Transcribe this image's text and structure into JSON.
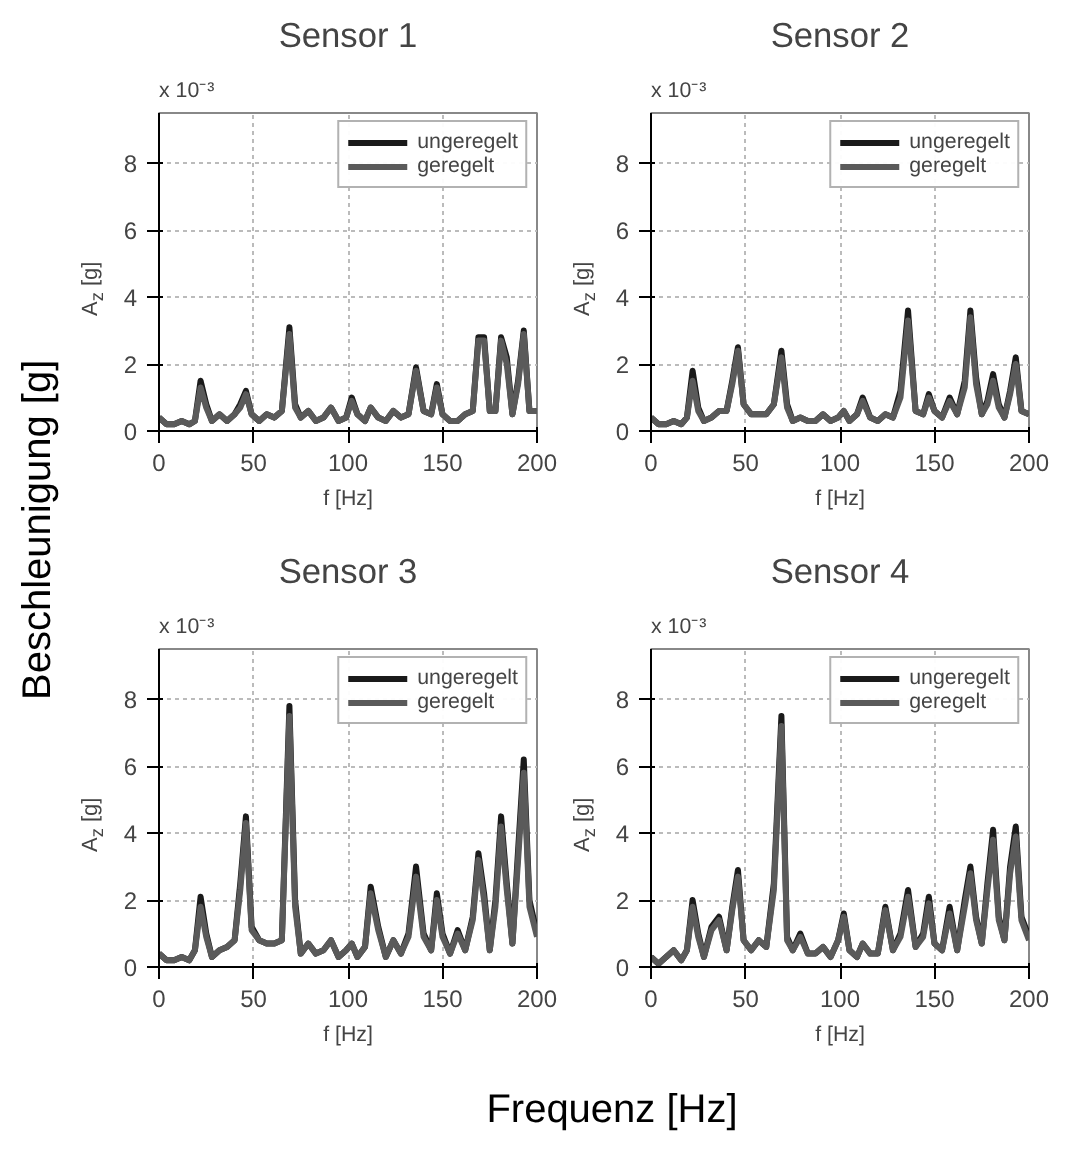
{
  "chart_data": [
    {
      "type": "line",
      "title": "Sensor 1",
      "xlabel": "f [Hz]",
      "ylabel": "A$_{z}$ [g]",
      "annotations": [
        "x 10⁻³"
      ],
      "xlim": [
        0,
        200
      ],
      "xticks": [
        0,
        50,
        100,
        150,
        200
      ],
      "ylim": [
        0,
        9.5
      ],
      "yticks": [
        0,
        2,
        4,
        6,
        8
      ],
      "grid": true,
      "legend": "top right",
      "x": [
        0,
        4,
        8,
        12,
        16,
        19,
        22,
        25,
        28,
        32,
        36,
        40,
        43,
        46,
        49,
        53,
        57,
        61,
        65,
        69,
        72,
        75,
        79,
        83,
        87,
        91,
        95,
        99,
        102,
        105,
        109,
        112,
        116,
        120,
        124,
        128,
        132,
        136,
        140,
        144,
        147,
        150,
        154,
        158,
        162,
        166,
        169,
        172,
        175,
        178,
        181,
        184,
        187,
        190,
        193,
        196,
        200
      ],
      "series": [
        {
          "name": "ungeregelt",
          "color": "#1a1a1a",
          "values": [
            0.4,
            0.2,
            0.2,
            0.3,
            0.2,
            0.3,
            1.5,
            0.8,
            0.3,
            0.5,
            0.3,
            0.5,
            0.8,
            1.2,
            0.5,
            0.3,
            0.5,
            0.4,
            0.6,
            3.1,
            0.8,
            0.4,
            0.6,
            0.3,
            0.4,
            0.7,
            0.3,
            0.4,
            1.0,
            0.5,
            0.3,
            0.7,
            0.4,
            0.3,
            0.6,
            0.4,
            0.5,
            1.9,
            0.6,
            0.5,
            1.4,
            0.5,
            0.3,
            0.3,
            0.5,
            0.6,
            2.8,
            2.8,
            0.6,
            0.6,
            2.8,
            2.2,
            0.5,
            1.5,
            3.0,
            0.6,
            0.6
          ]
        },
        {
          "name": "geregelt",
          "color": "#5a5a5a",
          "values": [
            0.4,
            0.2,
            0.2,
            0.3,
            0.2,
            0.3,
            1.3,
            0.7,
            0.3,
            0.5,
            0.3,
            0.5,
            0.7,
            1.1,
            0.5,
            0.3,
            0.5,
            0.4,
            0.6,
            2.9,
            0.7,
            0.4,
            0.6,
            0.3,
            0.4,
            0.7,
            0.3,
            0.4,
            0.9,
            0.5,
            0.3,
            0.7,
            0.4,
            0.3,
            0.6,
            0.4,
            0.5,
            1.8,
            0.6,
            0.5,
            1.3,
            0.5,
            0.3,
            0.3,
            0.5,
            0.6,
            2.7,
            2.7,
            0.6,
            0.6,
            2.7,
            2.0,
            0.5,
            1.4,
            2.9,
            0.6,
            0.6
          ]
        }
      ]
    },
    {
      "type": "line",
      "title": "Sensor 2",
      "xlabel": "f [Hz]",
      "ylabel": "A$_{z}$ [g]",
      "annotations": [
        "x 10⁻³"
      ],
      "xlim": [
        0,
        200
      ],
      "xticks": [
        0,
        50,
        100,
        150,
        200
      ],
      "ylim": [
        0,
        9.5
      ],
      "yticks": [
        0,
        2,
        4,
        6,
        8
      ],
      "grid": true,
      "legend": "top right",
      "x": [
        0,
        4,
        8,
        12,
        16,
        19,
        22,
        25,
        28,
        32,
        36,
        40,
        43,
        46,
        49,
        53,
        57,
        61,
        65,
        69,
        72,
        75,
        79,
        83,
        87,
        91,
        95,
        99,
        102,
        105,
        109,
        112,
        116,
        120,
        124,
        128,
        132,
        136,
        140,
        144,
        147,
        150,
        154,
        158,
        162,
        166,
        169,
        172,
        175,
        178,
        181,
        184,
        187,
        190,
        193,
        196,
        200
      ],
      "series": [
        {
          "name": "ungeregelt",
          "color": "#1a1a1a",
          "values": [
            0.4,
            0.2,
            0.2,
            0.3,
            0.2,
            0.4,
            1.8,
            0.7,
            0.3,
            0.4,
            0.6,
            0.6,
            1.5,
            2.5,
            0.8,
            0.5,
            0.5,
            0.5,
            0.8,
            2.4,
            0.8,
            0.3,
            0.4,
            0.3,
            0.3,
            0.5,
            0.3,
            0.4,
            0.6,
            0.3,
            0.5,
            1.0,
            0.4,
            0.3,
            0.5,
            0.4,
            1.2,
            3.6,
            0.6,
            0.5,
            1.1,
            0.6,
            0.4,
            1.0,
            0.5,
            1.5,
            3.6,
            1.6,
            0.5,
            0.9,
            1.7,
            0.8,
            0.4,
            1.2,
            2.2,
            0.6,
            0.5
          ]
        },
        {
          "name": "geregelt",
          "color": "#5a5a5a",
          "values": [
            0.4,
            0.2,
            0.2,
            0.3,
            0.2,
            0.4,
            1.5,
            0.6,
            0.3,
            0.4,
            0.6,
            0.6,
            1.4,
            2.4,
            0.8,
            0.5,
            0.5,
            0.5,
            0.8,
            2.2,
            0.7,
            0.3,
            0.4,
            0.3,
            0.3,
            0.5,
            0.3,
            0.4,
            0.6,
            0.3,
            0.5,
            0.9,
            0.4,
            0.3,
            0.5,
            0.4,
            1.0,
            3.3,
            0.6,
            0.5,
            1.0,
            0.6,
            0.4,
            0.9,
            0.5,
            1.3,
            3.4,
            1.4,
            0.5,
            0.8,
            1.5,
            0.7,
            0.4,
            1.1,
            2.0,
            0.6,
            0.5
          ]
        }
      ]
    },
    {
      "type": "line",
      "title": "Sensor 3",
      "xlabel": "f [Hz]",
      "ylabel": "A$_{z}$ [g]",
      "annotations": [
        "x 10⁻³"
      ],
      "xlim": [
        0,
        200
      ],
      "xticks": [
        0,
        50,
        100,
        150,
        200
      ],
      "ylim": [
        0,
        9.5
      ],
      "yticks": [
        0,
        2,
        4,
        6,
        8
      ],
      "grid": true,
      "legend": "top right",
      "x": [
        0,
        4,
        8,
        12,
        16,
        19,
        22,
        25,
        28,
        32,
        36,
        40,
        43,
        46,
        49,
        53,
        57,
        61,
        65,
        69,
        72,
        75,
        79,
        83,
        87,
        91,
        95,
        99,
        102,
        105,
        109,
        112,
        116,
        120,
        124,
        128,
        132,
        136,
        140,
        144,
        147,
        150,
        154,
        158,
        162,
        166,
        169,
        172,
        175,
        178,
        181,
        184,
        187,
        190,
        193,
        196,
        200
      ],
      "series": [
        {
          "name": "ungeregelt",
          "color": "#1a1a1a",
          "values": [
            0.4,
            0.2,
            0.2,
            0.3,
            0.2,
            0.5,
            2.1,
            1.0,
            0.3,
            0.5,
            0.6,
            0.8,
            2.5,
            4.5,
            1.2,
            0.8,
            0.7,
            0.7,
            0.8,
            7.8,
            2.0,
            0.4,
            0.7,
            0.4,
            0.5,
            0.8,
            0.3,
            0.5,
            0.7,
            0.3,
            0.6,
            2.4,
            1.2,
            0.3,
            0.8,
            0.4,
            1.0,
            3.0,
            1.0,
            0.5,
            2.2,
            1.0,
            0.4,
            1.1,
            0.5,
            1.5,
            3.4,
            2.2,
            0.5,
            2.0,
            4.5,
            2.5,
            0.7,
            3.5,
            6.2,
            2.0,
            1.0
          ]
        },
        {
          "name": "geregelt",
          "color": "#5a5a5a",
          "values": [
            0.4,
            0.2,
            0.2,
            0.3,
            0.2,
            0.5,
            1.8,
            0.9,
            0.3,
            0.5,
            0.6,
            0.8,
            2.3,
            4.3,
            1.1,
            0.8,
            0.7,
            0.7,
            0.8,
            7.5,
            1.8,
            0.4,
            0.7,
            0.4,
            0.5,
            0.8,
            0.3,
            0.5,
            0.7,
            0.3,
            0.6,
            2.2,
            1.1,
            0.3,
            0.8,
            0.4,
            0.9,
            2.7,
            0.9,
            0.5,
            2.0,
            0.9,
            0.4,
            1.0,
            0.5,
            1.4,
            3.2,
            2.0,
            0.5,
            1.8,
            4.2,
            2.3,
            0.7,
            3.2,
            5.8,
            1.8,
            0.9
          ]
        }
      ]
    },
    {
      "type": "line",
      "title": "Sensor 4",
      "xlabel": "f [Hz]",
      "ylabel": "A$_{z}$ [g]",
      "annotations": [
        "x 10⁻³"
      ],
      "xlim": [
        0,
        200
      ],
      "xticks": [
        0,
        50,
        100,
        150,
        200
      ],
      "ylim": [
        0,
        9.5
      ],
      "yticks": [
        0,
        2,
        4,
        6,
        8
      ],
      "grid": true,
      "legend": "top right",
      "x": [
        0,
        4,
        8,
        12,
        16,
        19,
        22,
        25,
        28,
        32,
        36,
        40,
        43,
        46,
        49,
        53,
        57,
        61,
        65,
        69,
        72,
        75,
        79,
        83,
        87,
        91,
        95,
        99,
        102,
        105,
        109,
        112,
        116,
        120,
        124,
        128,
        132,
        136,
        140,
        144,
        147,
        150,
        154,
        158,
        162,
        166,
        169,
        172,
        175,
        178,
        181,
        184,
        187,
        190,
        193,
        196,
        200
      ],
      "series": [
        {
          "name": "ungeregelt",
          "color": "#1a1a1a",
          "values": [
            0.3,
            0.1,
            0.3,
            0.5,
            0.2,
            0.5,
            2.0,
            1.0,
            0.3,
            1.2,
            1.5,
            0.5,
            1.8,
            2.9,
            0.8,
            0.5,
            0.8,
            0.6,
            2.5,
            7.5,
            0.9,
            0.5,
            1.0,
            0.4,
            0.4,
            0.6,
            0.3,
            0.8,
            1.6,
            0.5,
            0.3,
            0.7,
            0.4,
            0.4,
            1.8,
            0.5,
            1.0,
            2.3,
            0.6,
            1.0,
            2.1,
            0.7,
            0.5,
            1.8,
            0.5,
            2.0,
            3.0,
            1.5,
            0.7,
            2.5,
            4.1,
            1.5,
            0.8,
            3.0,
            4.2,
            1.5,
            0.9
          ]
        },
        {
          "name": "geregelt",
          "color": "#5a5a5a",
          "values": [
            0.3,
            0.1,
            0.3,
            0.5,
            0.2,
            0.5,
            1.8,
            0.9,
            0.3,
            1.1,
            1.4,
            0.5,
            1.7,
            2.7,
            0.8,
            0.5,
            0.8,
            0.6,
            2.3,
            7.2,
            0.8,
            0.5,
            0.9,
            0.4,
            0.4,
            0.6,
            0.3,
            0.8,
            1.5,
            0.5,
            0.3,
            0.7,
            0.4,
            0.4,
            1.7,
            0.5,
            0.9,
            2.1,
            0.6,
            0.9,
            1.9,
            0.7,
            0.5,
            1.6,
            0.5,
            1.8,
            2.8,
            1.4,
            0.7,
            2.3,
            3.8,
            1.4,
            0.8,
            2.8,
            3.9,
            1.4,
            0.8
          ]
        }
      ]
    },
    {
      "type": "other",
      "xlabel": "Frequenz [Hz]",
      "ylabel": "Beschleunigung [g]"
    }
  ]
}
